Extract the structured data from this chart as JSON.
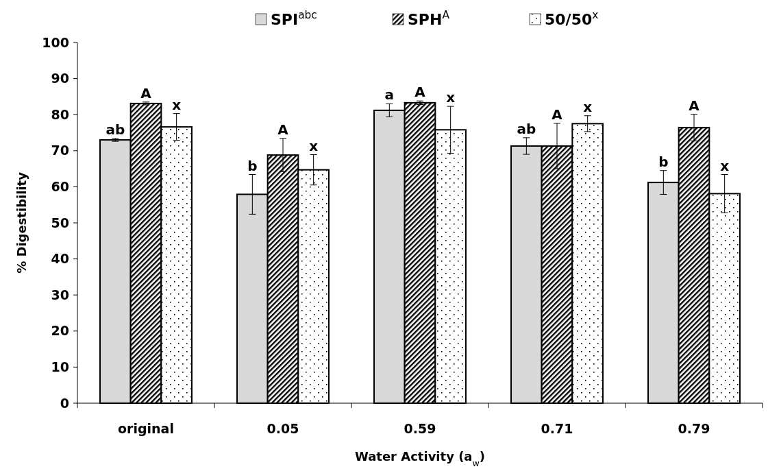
{
  "chart_data": {
    "type": "bar",
    "xlabel": "Water Activity (a$_{w}$)",
    "ylabel": "% Digestibility",
    "categories": [
      "original",
      "0.05",
      "0.59",
      "0.71",
      "0.79"
    ],
    "series": [
      {
        "name": "SPI$^{abc}$",
        "color": "#d9d9d9",
        "values": [
          73.0,
          57.9,
          81.2,
          71.3,
          61.2
        ],
        "errors": [
          0.4,
          5.5,
          1.8,
          2.3,
          3.3
        ],
        "value_labels": [
          "ab",
          "b",
          "a",
          "ab",
          "b"
        ]
      },
      {
        "name": "SPH$^{A}$",
        "color": "#000000",
        "values": [
          83.1,
          68.8,
          83.3,
          71.3,
          76.4
        ],
        "errors": [
          0.4,
          4.6,
          0.5,
          6.3,
          3.7
        ],
        "value_labels": [
          "A",
          "A",
          "A",
          "A",
          "A"
        ]
      },
      {
        "name": "50/50$^{x}$",
        "color": "#000000",
        "values": [
          76.6,
          64.7,
          75.8,
          77.5,
          58.1
        ],
        "errors": [
          3.7,
          4.2,
          6.5,
          2.2,
          5.3
        ],
        "value_labels": [
          "x",
          "x",
          "x",
          "x",
          "x"
        ]
      }
    ],
    "ylim": [
      0,
      100
    ],
    "yticks": [
      0,
      10,
      20,
      30,
      40,
      50,
      60,
      70,
      80,
      90,
      100
    ],
    "legend": "top"
  }
}
